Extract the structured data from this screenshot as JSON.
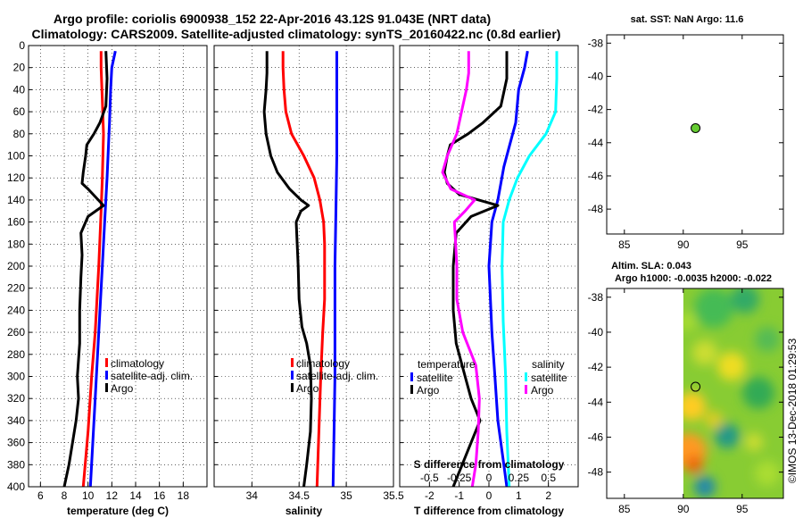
{
  "title_line1": "Argo profile: coriolis 6900938_152 22-Apr-2016 43.12S 91.043E (NRT data)",
  "title_line2": "Climatology: CARS2009. Satellite-adjusted climatology: synTS_20160422.nc (0.8d earlier)",
  "sst_title": "sat. SST: NaN Argo: 11.6",
  "sla_title1": "Altim. SLA: 0.043",
  "sla_title2": "Argo h1000: -0.0035 h2000: -0.022",
  "credit": "©IMOS 13-Dec-2018 01:29:53",
  "colors": {
    "climatology": "#ff0000",
    "satellite": "#0000ff",
    "argo": "#000000",
    "s_satellite": "#00ffff",
    "s_argo": "#ff00ff",
    "marker": "#66cc33"
  },
  "chart_data": [
    {
      "type": "line",
      "xlabel": "temperature (deg C)",
      "xlim": [
        5,
        20
      ],
      "ylim": [
        400,
        0
      ],
      "xticks": [
        "6",
        "8",
        "10",
        "12",
        "14",
        "16",
        "18"
      ],
      "xtick_values": [
        6,
        8,
        10,
        12,
        14,
        16,
        18
      ],
      "yticks": [
        "0",
        "20",
        "40",
        "60",
        "80",
        "100",
        "120",
        "140",
        "160",
        "180",
        "200",
        "220",
        "240",
        "260",
        "280",
        "300",
        "320",
        "340",
        "360",
        "380",
        "400"
      ],
      "legend": [
        "climatology",
        "satellite-adj. clim.",
        "Argo"
      ],
      "series": [
        {
          "name": "climatology",
          "color": "#ff0000",
          "points": [
            [
              11.1,
              5
            ],
            [
              11.1,
              20
            ],
            [
              11.2,
              50
            ],
            [
              11.3,
              80
            ],
            [
              11.2,
              120
            ],
            [
              11.1,
              150
            ],
            [
              10.9,
              200
            ],
            [
              10.6,
              260
            ],
            [
              10.3,
              300
            ],
            [
              10.0,
              350
            ],
            [
              9.6,
              400
            ]
          ]
        },
        {
          "name": "satellite-adj. clim.",
          "color": "#0000ff",
          "points": [
            [
              12.3,
              5
            ],
            [
              12.0,
              20
            ],
            [
              11.9,
              40
            ],
            [
              11.8,
              70
            ],
            [
              11.6,
              120
            ],
            [
              11.4,
              160
            ],
            [
              11.2,
              200
            ],
            [
              10.9,
              260
            ],
            [
              10.6,
              320
            ],
            [
              10.4,
              360
            ],
            [
              10.2,
              400
            ]
          ]
        },
        {
          "name": "Argo",
          "color": "#000000",
          "points": [
            [
              11.5,
              5
            ],
            [
              11.6,
              30
            ],
            [
              11.5,
              55
            ],
            [
              11.0,
              70
            ],
            [
              10.5,
              80
            ],
            [
              9.9,
              90
            ],
            [
              9.8,
              100
            ],
            [
              9.6,
              115
            ],
            [
              9.5,
              125
            ],
            [
              10.0,
              130
            ],
            [
              11.3,
              145
            ],
            [
              10.0,
              155
            ],
            [
              9.4,
              170
            ],
            [
              9.5,
              190
            ],
            [
              9.4,
              210
            ],
            [
              9.3,
              240
            ],
            [
              9.3,
              270
            ],
            [
              9.1,
              300
            ],
            [
              9.2,
              320
            ],
            [
              9.0,
              340
            ],
            [
              8.7,
              360
            ],
            [
              8.4,
              380
            ],
            [
              8.0,
              400
            ]
          ]
        }
      ]
    },
    {
      "type": "line",
      "xlabel": "salinity",
      "xlim": [
        33.6,
        35.5
      ],
      "ylim": [
        400,
        0
      ],
      "xticks": [
        "34",
        "34.5",
        "35",
        "35.5"
      ],
      "xtick_values": [
        34,
        34.5,
        35,
        35.5
      ],
      "legend": [
        "climatology",
        "satellite-adj. clim.",
        "Argo"
      ],
      "series": [
        {
          "name": "climatology",
          "color": "#ff0000",
          "points": [
            [
              34.33,
              5
            ],
            [
              34.33,
              20
            ],
            [
              34.34,
              40
            ],
            [
              34.36,
              60
            ],
            [
              34.42,
              80
            ],
            [
              34.55,
              100
            ],
            [
              34.66,
              120
            ],
            [
              34.72,
              140
            ],
            [
              34.76,
              160
            ],
            [
              34.77,
              180
            ],
            [
              34.77,
              200
            ],
            [
              34.77,
              230
            ],
            [
              34.75,
              260
            ],
            [
              34.73,
              300
            ],
            [
              34.71,
              350
            ],
            [
              34.69,
              400
            ]
          ]
        },
        {
          "name": "satellite-adj. clim.",
          "color": "#0000ff",
          "points": [
            [
              34.9,
              5
            ],
            [
              34.9,
              50
            ],
            [
              34.9,
              100
            ],
            [
              34.89,
              150
            ],
            [
              34.88,
              200
            ],
            [
              34.88,
              250
            ],
            [
              34.88,
              300
            ],
            [
              34.87,
              350
            ],
            [
              34.86,
              400
            ]
          ]
        },
        {
          "name": "Argo",
          "color": "#000000",
          "points": [
            [
              34.16,
              5
            ],
            [
              34.16,
              25
            ],
            [
              34.15,
              40
            ],
            [
              34.13,
              60
            ],
            [
              34.15,
              80
            ],
            [
              34.2,
              100
            ],
            [
              34.27,
              115
            ],
            [
              34.4,
              130
            ],
            [
              34.52,
              140
            ],
            [
              34.6,
              145
            ],
            [
              34.52,
              150
            ],
            [
              34.47,
              160
            ],
            [
              34.48,
              180
            ],
            [
              34.49,
              200
            ],
            [
              34.5,
              230
            ],
            [
              34.53,
              255
            ],
            [
              34.58,
              270
            ],
            [
              34.62,
              290
            ],
            [
              34.63,
              320
            ],
            [
              34.62,
              350
            ],
            [
              34.58,
              380
            ],
            [
              34.55,
              400
            ]
          ]
        }
      ]
    },
    {
      "type": "line",
      "xlabel": "T difference from climatology",
      "xlim": [
        -3,
        3
      ],
      "ylim": [
        400,
        0
      ],
      "xticks": [
        "-2",
        "-1",
        "0",
        "1",
        "2"
      ],
      "xtick_values": [
        -2,
        -1,
        0,
        1,
        2
      ],
      "x2label": "S difference from climatology",
      "x2ticks": [
        "-0.5",
        "-0.25",
        "0",
        "0.25",
        "0.5"
      ],
      "x2tick_values": [
        -0.5,
        -0.25,
        0,
        0.25,
        0.5
      ],
      "x2lim": [
        -0.75,
        0.75
      ],
      "legend_left_title": "temperature",
      "legend_right_title": "salinity",
      "legend_left": [
        "satellite",
        "Argo"
      ],
      "legend_right": [
        "satellite",
        "Argo"
      ],
      "series": [
        {
          "name": "T satellite",
          "color": "#0000ff",
          "points": [
            [
              1.3,
              5
            ],
            [
              1.2,
              20
            ],
            [
              1.0,
              40
            ],
            [
              0.9,
              70
            ],
            [
              0.7,
              90
            ],
            [
              0.5,
              110
            ],
            [
              0.3,
              140
            ],
            [
              0.1,
              160
            ],
            [
              0.0,
              200
            ],
            [
              0.1,
              260
            ],
            [
              0.2,
              300
            ],
            [
              0.3,
              340
            ],
            [
              0.5,
              380
            ],
            [
              0.6,
              400
            ]
          ]
        },
        {
          "name": "T Argo",
          "color": "#000000",
          "points": [
            [
              0.6,
              5
            ],
            [
              0.6,
              30
            ],
            [
              0.4,
              55
            ],
            [
              -0.2,
              70
            ],
            [
              -0.7,
              80
            ],
            [
              -1.3,
              90
            ],
            [
              -1.4,
              100
            ],
            [
              -1.5,
              115
            ],
            [
              -1.4,
              125
            ],
            [
              -1.0,
              135
            ],
            [
              0.3,
              145
            ],
            [
              -0.6,
              155
            ],
            [
              -1.1,
              170
            ],
            [
              -1.2,
              200
            ],
            [
              -1.2,
              240
            ],
            [
              -1.1,
              270
            ],
            [
              -0.8,
              300
            ],
            [
              -0.6,
              320
            ],
            [
              -0.3,
              340
            ],
            [
              -0.6,
              360
            ],
            [
              -0.9,
              380
            ],
            [
              -1.2,
              400
            ]
          ]
        },
        {
          "name": "S satellite",
          "color": "#00ffff",
          "points": [
            [
              0.57,
              5
            ],
            [
              0.57,
              30
            ],
            [
              0.56,
              60
            ],
            [
              0.48,
              80
            ],
            [
              0.34,
              100
            ],
            [
              0.24,
              120
            ],
            [
              0.17,
              140
            ],
            [
              0.12,
              160
            ],
            [
              0.11,
              200
            ],
            [
              0.12,
              250
            ],
            [
              0.14,
              300
            ],
            [
              0.15,
              350
            ],
            [
              0.17,
              400
            ]
          ]
        },
        {
          "name": "S Argo",
          "color": "#ff00ff",
          "points": [
            [
              -0.17,
              5
            ],
            [
              -0.17,
              25
            ],
            [
              -0.19,
              40
            ],
            [
              -0.23,
              60
            ],
            [
              -0.27,
              80
            ],
            [
              -0.35,
              100
            ],
            [
              -0.39,
              115
            ],
            [
              -0.32,
              130
            ],
            [
              -0.12,
              140
            ],
            [
              -0.2,
              150
            ],
            [
              -0.29,
              160
            ],
            [
              -0.28,
              180
            ],
            [
              -0.27,
              200
            ],
            [
              -0.27,
              230
            ],
            [
              -0.22,
              260
            ],
            [
              -0.11,
              290
            ],
            [
              -0.08,
              320
            ],
            [
              -0.09,
              350
            ],
            [
              -0.11,
              380
            ],
            [
              -0.14,
              400
            ]
          ]
        }
      ]
    },
    {
      "type": "scatter",
      "title": "sat. SST: NaN Argo: 11.6",
      "xlim": [
        83.5,
        98.5
      ],
      "ylim": [
        -49.5,
        -37.5
      ],
      "xticks": [
        "85",
        "90",
        "95"
      ],
      "xtick_values": [
        85,
        90,
        95
      ],
      "yticks": [
        "-38",
        "-40",
        "-42",
        "-44",
        "-46",
        "-48"
      ],
      "ytick_values": [
        -38,
        -40,
        -42,
        -44,
        -46,
        -48
      ],
      "points": [
        [
          91.043,
          -43.12
        ]
      ]
    },
    {
      "type": "heatmap",
      "title": "Altim. SLA: 0.043 / Argo h1000: -0.0035 h2000: -0.022",
      "xlim": [
        83.5,
        98.5
      ],
      "ylim": [
        -49.5,
        -37.5
      ],
      "xticks": [
        "85",
        "90",
        "95"
      ],
      "xtick_values": [
        85,
        90,
        95
      ],
      "yticks": [
        "-38",
        "-40",
        "-42",
        "-44",
        "-46",
        "-48"
      ],
      "ytick_values": [
        -38,
        -40,
        -42,
        -44,
        -46,
        -48
      ],
      "data_lon_start": 90,
      "points": [
        [
          91.043,
          -43.12
        ]
      ]
    }
  ]
}
